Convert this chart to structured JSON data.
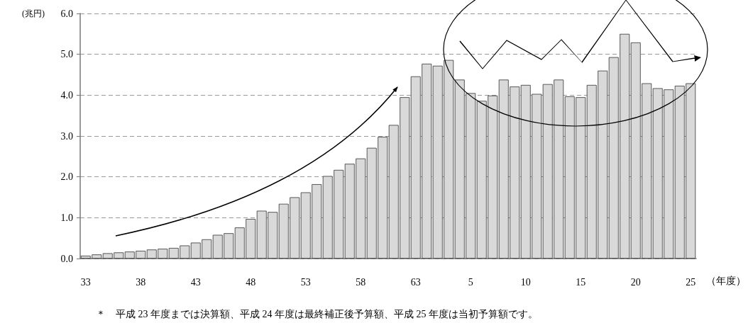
{
  "chart_data": {
    "type": "bar",
    "ylabel": "(兆円)",
    "xlabel": "（年度）",
    "categories": [
      "33",
      null,
      null,
      null,
      null,
      "38",
      null,
      null,
      null,
      null,
      "43",
      null,
      null,
      null,
      null,
      "48",
      null,
      null,
      null,
      null,
      "53",
      null,
      null,
      null,
      null,
      "58",
      null,
      null,
      null,
      null,
      "63",
      null,
      null,
      null,
      null,
      "5",
      null,
      null,
      null,
      null,
      "10",
      null,
      null,
      null,
      null,
      "15",
      null,
      null,
      null,
      null,
      "20",
      null,
      null,
      null,
      null,
      "25"
    ],
    "values": [
      0.07,
      0.1,
      0.13,
      0.15,
      0.17,
      0.19,
      0.22,
      0.24,
      0.26,
      0.32,
      0.39,
      0.47,
      0.58,
      0.62,
      0.76,
      0.97,
      1.17,
      1.14,
      1.34,
      1.5,
      1.62,
      1.82,
      2.02,
      2.17,
      2.32,
      2.45,
      2.71,
      2.98,
      3.27,
      3.95,
      4.46,
      4.77,
      4.72,
      4.86,
      4.38,
      4.05,
      3.86,
      3.99,
      4.38,
      4.21,
      4.25,
      4.03,
      4.27,
      4.38,
      3.97,
      3.95,
      4.25,
      4.6,
      4.93,
      5.5,
      5.29,
      4.29,
      4.17,
      4.14,
      4.23,
      4.29
    ],
    "color": "#d9d9d9",
    "ylim": [
      0,
      6
    ],
    "yticks": [
      {
        "value": 0,
        "label": "0.0"
      },
      {
        "value": 1,
        "label": "1.0"
      },
      {
        "value": 2,
        "label": "2.0"
      },
      {
        "value": 3,
        "label": "3.0"
      },
      {
        "value": 4,
        "label": "4.0"
      },
      {
        "value": 5,
        "label": "5.0"
      },
      {
        "value": 6,
        "label": "6.0"
      }
    ],
    "grid": "y",
    "annotations": [
      "＊　平成 23 年度までは決算額、平成 24 年度は最終補正後予算額、平成 25 年度は当初予算額です。"
    ]
  }
}
